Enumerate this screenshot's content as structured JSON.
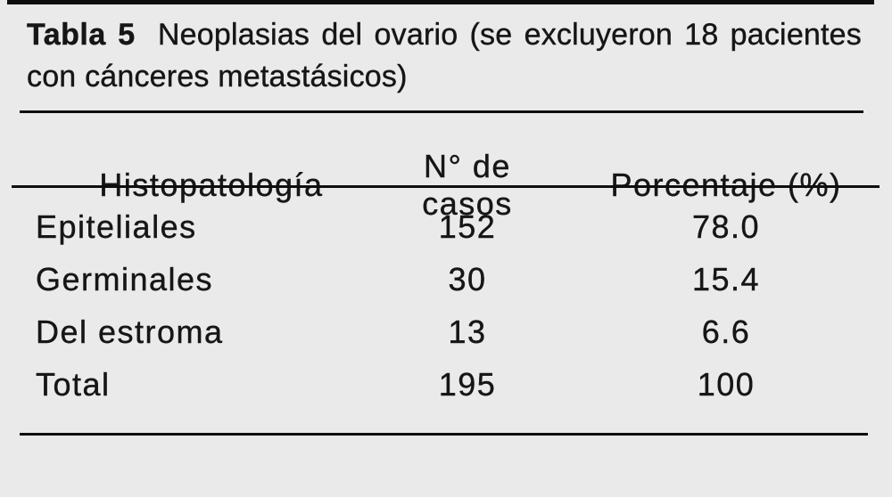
{
  "page": {
    "background": "#eaeaea",
    "text": "#161616",
    "rule": "#0e0e0e"
  },
  "table": {
    "tag": "Tabla 5",
    "title_line1": "Neoplasias del ovario (se excluyeron 18 pacientes",
    "title_line2": "con cánceres metastásicos)",
    "headers": {
      "histopathology": "Histopatología",
      "cases": "N° de casos",
      "percentage": "Porcentaje (%)"
    },
    "rows": [
      {
        "histopathology": "Epiteliales",
        "cases": "152",
        "percentage": "78.0"
      },
      {
        "histopathology": "Germinales",
        "cases": "30",
        "percentage": "15.4"
      },
      {
        "histopathology": "Del estroma",
        "cases": "13",
        "percentage": "6.6"
      },
      {
        "histopathology": "Total",
        "cases": "195",
        "percentage": "100"
      }
    ]
  }
}
